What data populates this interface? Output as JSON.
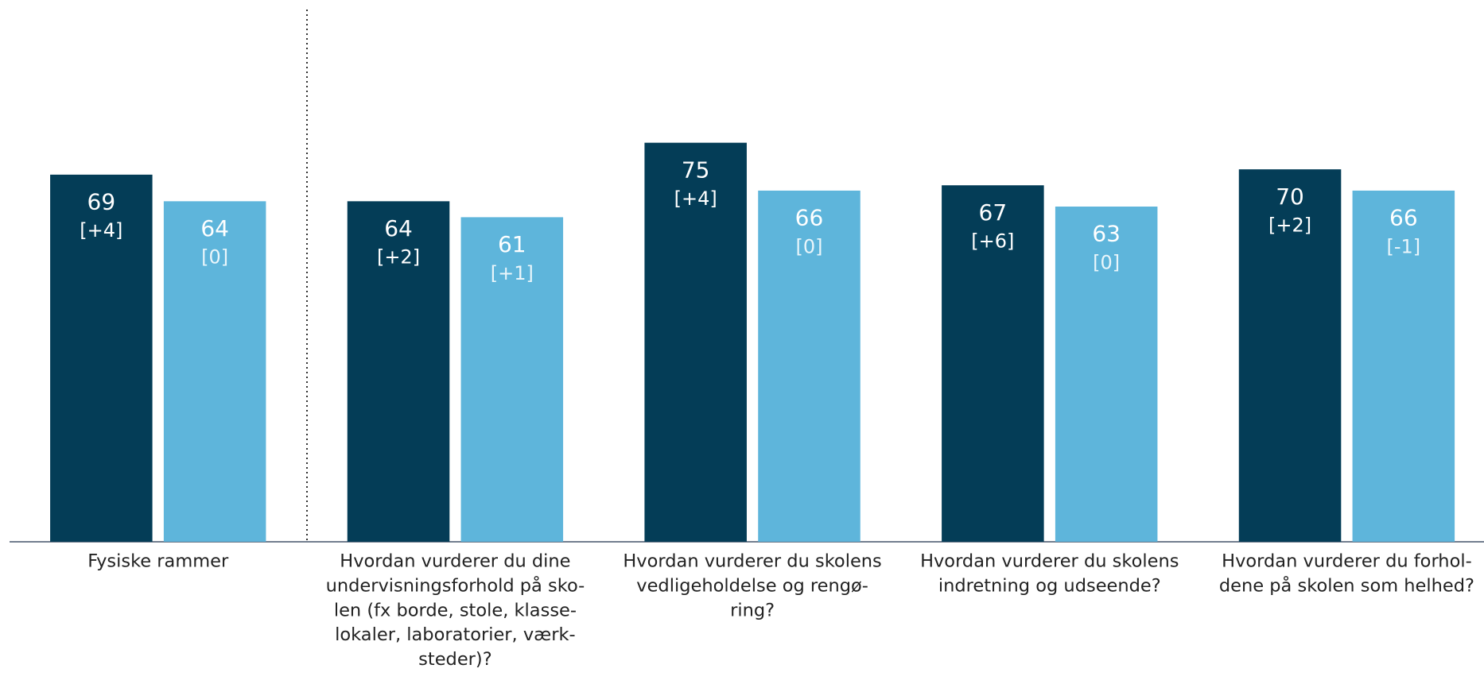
{
  "chart_data": {
    "type": "bar",
    "categories": [
      [
        "Fysiske rammer"
      ],
      [
        "Hvordan vurderer du dine",
        "undervisningsforhold på sko-",
        "len (fx borde, stole, klasse-",
        "lokaler, laboratorier, værk-",
        "steder)?"
      ],
      [
        "Hvordan vurderer du skolens",
        "vedligeholdelse og rengø-",
        "ring?"
      ],
      [
        "Hvordan vurderer du skolens",
        "indretning og udseende?"
      ],
      [
        "Hvordan vurderer du forhol-",
        "dene på skolen som helhed?"
      ]
    ],
    "series": [
      {
        "color": "#043d57",
        "values": [
          69,
          64,
          75,
          67,
          70
        ],
        "changes": [
          "[+4]",
          "[+2]",
          "[+4]",
          "[+6]",
          "[+2]"
        ]
      },
      {
        "color": "#5eb5db",
        "values": [
          64,
          61,
          66,
          63,
          66
        ],
        "changes": [
          "[0]",
          "[+1]",
          "[0]",
          "[0]",
          "[-1]"
        ]
      }
    ],
    "ylim": [
      0,
      100
    ]
  }
}
